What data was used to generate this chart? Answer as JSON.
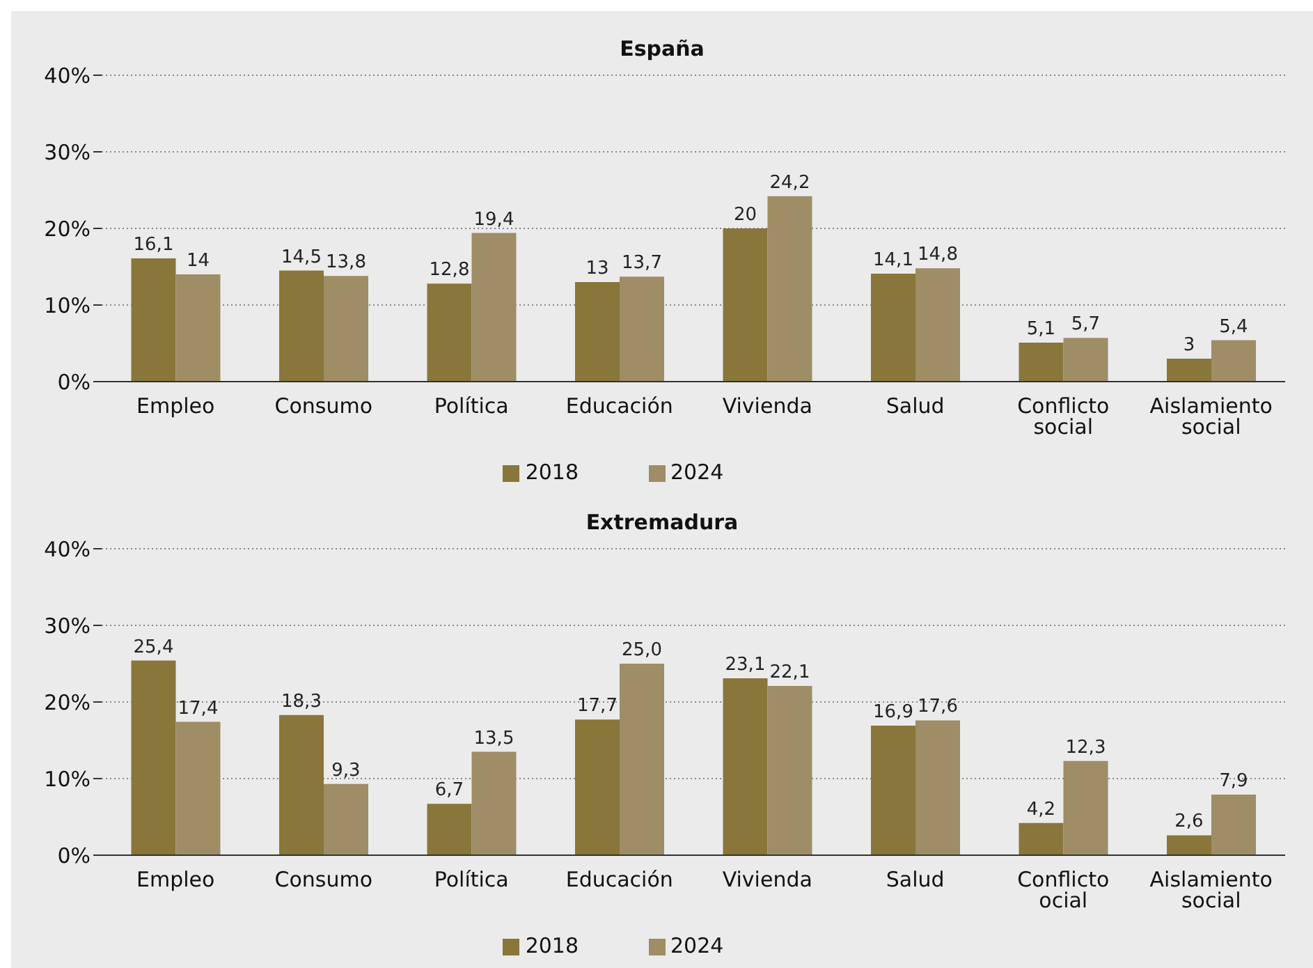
{
  "chart_data": [
    {
      "type": "bar",
      "title": "España",
      "categories": [
        "Empleo",
        "Consumo",
        "Política",
        "Educación",
        "Vivienda",
        "Salud",
        "Conflicto social",
        "Aislamiento social"
      ],
      "series": [
        {
          "name": "2018",
          "color": "#88763a",
          "values": [
            16.1,
            14.5,
            12.8,
            13,
            20,
            14.1,
            5.1,
            3
          ],
          "value_labels": [
            "16,1",
            "14,5",
            "12,8",
            "13",
            "20",
            "14,1",
            "5,1",
            "3"
          ]
        },
        {
          "name": "2024",
          "color": "#9e8d65",
          "values": [
            14,
            13.8,
            19.4,
            13.7,
            24.2,
            14.8,
            5.7,
            5.4
          ],
          "value_labels": [
            "14",
            "13,8",
            "19,4",
            "13,7",
            "24,2",
            "14,8",
            "5,7",
            "5,4"
          ]
        }
      ],
      "ylim": [
        0,
        40
      ],
      "yticks": [
        {
          "value": 0,
          "label": "0%"
        },
        {
          "value": 10,
          "label": "10%"
        },
        {
          "value": 20,
          "label": "20%"
        },
        {
          "value": 30,
          "label": "30%"
        },
        {
          "value": 40,
          "label": "40%"
        }
      ],
      "grid": "y",
      "legend": "bottom"
    },
    {
      "type": "bar",
      "title": "Extremadura",
      "categories": [
        "Empleo",
        "Consumo",
        "Política",
        "Educación",
        "Vivienda",
        "Salud",
        "Conflicto ocial",
        "Aislamiento social"
      ],
      "series": [
        {
          "name": "2018",
          "color": "#88763a",
          "values": [
            25.4,
            18.3,
            6.7,
            17.7,
            23.1,
            16.9,
            4.2,
            2.6
          ],
          "value_labels": [
            "25,4",
            "18,3",
            "6,7",
            "17,7",
            "23,1",
            "16,9",
            "4,2",
            "2,6"
          ]
        },
        {
          "name": "2024",
          "color": "#9e8d65",
          "values": [
            17.4,
            9.3,
            13.5,
            25.0,
            22.1,
            17.6,
            12.3,
            7.9
          ],
          "value_labels": [
            "17,4",
            "9,3",
            "13,5",
            "25,0",
            "22,1",
            "17,6",
            "12,3",
            "7,9"
          ]
        }
      ],
      "ylim": [
        0,
        40
      ],
      "yticks": [
        {
          "value": 0,
          "label": "0%"
        },
        {
          "value": 10,
          "label": "10%"
        },
        {
          "value": 20,
          "label": "20%"
        },
        {
          "value": 30,
          "label": "30%"
        },
        {
          "value": 40,
          "label": "40%"
        }
      ],
      "grid": "y",
      "legend": "bottom"
    }
  ]
}
